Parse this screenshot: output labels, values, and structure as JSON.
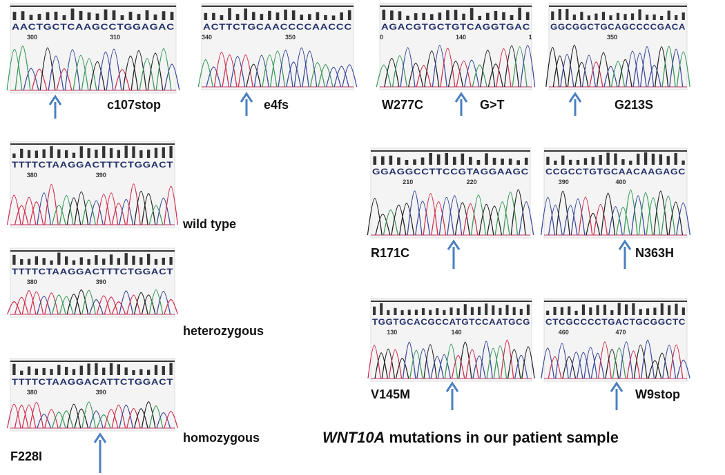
{
  "panels": [
    {
      "sequence": "AACTGCTCAAGCCTGGAGAC",
      "positions": [
        "300",
        "310"
      ],
      "labels": [
        "c107stop"
      ]
    },
    {
      "sequence": "ACTTCTGCAACCCCAACCC",
      "positions": [
        "340",
        "350"
      ],
      "labels": [
        "e4fs"
      ]
    },
    {
      "sequence": "AGACGTGCTGTCAGGTGAC",
      "positions": [
        "0",
        "140",
        "1"
      ],
      "labels": [
        "W277C",
        "G>T"
      ]
    },
    {
      "sequence": "GGCGGCTGCAGCCCCGACA",
      "positions": [
        "350"
      ],
      "labels": [
        "G213S"
      ]
    },
    {
      "sequence": "TTTTCTAAGGACTTTCTGGACT",
      "positions": [
        "380",
        "390"
      ],
      "labels": [
        "wild type"
      ]
    },
    {
      "sequence": "TTTTCTAAGGACTTTCTGGACT",
      "positions": [
        "380",
        "390"
      ],
      "labels": [
        "heterozygous"
      ]
    },
    {
      "sequence": "TTTTCTAAGGACATTCTGGACT",
      "positions": [
        "380",
        "390"
      ],
      "labels": [
        "homozygous",
        "F228I"
      ]
    },
    {
      "sequence": "GGAGGCCTTCCGTAGGAAGC",
      "positions": [
        "210",
        "220"
      ],
      "labels": [
        "R171C"
      ]
    },
    {
      "sequence": "CCGCCTGTGCAACAAGAGC",
      "positions": [
        "390",
        "400"
      ],
      "labels": [
        "N363H"
      ]
    },
    {
      "sequence": "TGGTGCACGCCATGTCCAATGCG",
      "positions": [
        "130",
        "140"
      ],
      "labels": [
        "V145M"
      ]
    },
    {
      "sequence": "CTCGCCCCTGACTGCGGCTC",
      "positions": [
        "460",
        "470"
      ],
      "labels": [
        "W9stop"
      ]
    }
  ],
  "title": {
    "gene": "WNT10A",
    "rest": "mutations in our patient sample"
  }
}
